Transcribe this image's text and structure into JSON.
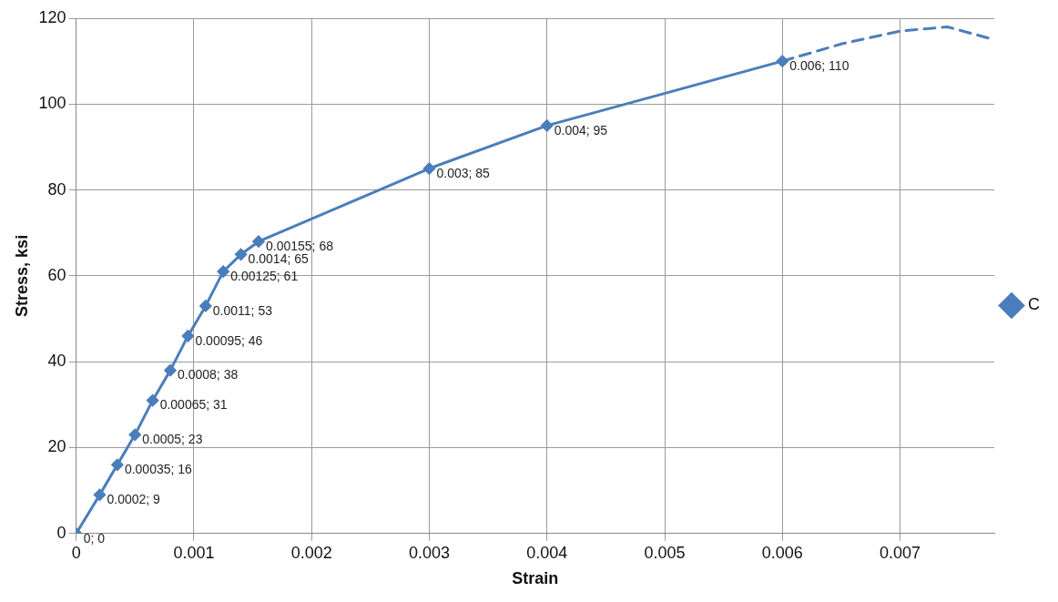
{
  "chart_data": {
    "type": "line",
    "xlabel": "Strain",
    "ylabel": "Stress, ksi",
    "xlim": [
      0,
      0.0078
    ],
    "xticks": [
      0,
      0.001,
      0.002,
      0.003,
      0.004,
      0.005,
      0.006,
      0.007
    ],
    "ylim": [
      0,
      120
    ],
    "yticks": [
      0,
      20,
      40,
      60,
      80,
      100,
      120
    ],
    "grid": true,
    "legend": "right",
    "series": [
      {
        "name": "C",
        "color": "#4a7ebb",
        "marker": "diamond",
        "line_style": "solid",
        "x": [
          0,
          0.0002,
          0.00035,
          0.0005,
          0.00065,
          0.0008,
          0.00095,
          0.0011,
          0.00125,
          0.0014,
          0.00155,
          0.003,
          0.004,
          0.006
        ],
        "values": [
          0,
          9,
          16,
          23,
          31,
          38,
          46,
          53,
          61,
          65,
          68,
          85,
          95,
          110
        ],
        "value_labels": [
          "0; 0",
          "0.0002; 9",
          "0.00035; 16",
          "0.0005; 23",
          "0.00065; 31",
          "0.0008; 38",
          "0.00095; 46",
          "0.0011; 53",
          "0.00125; 61",
          "0.0014; 65",
          "0.00155; 68",
          "0.003; 85",
          "0.004; 95",
          "0.006; 110"
        ]
      },
      {
        "color": "#4a7ebb",
        "marker": "none",
        "line_style": "dashed",
        "x": [
          0.006,
          0.0065,
          0.007,
          0.0074,
          0.0078
        ],
        "values": [
          110,
          114,
          117,
          118,
          115
        ]
      }
    ]
  }
}
